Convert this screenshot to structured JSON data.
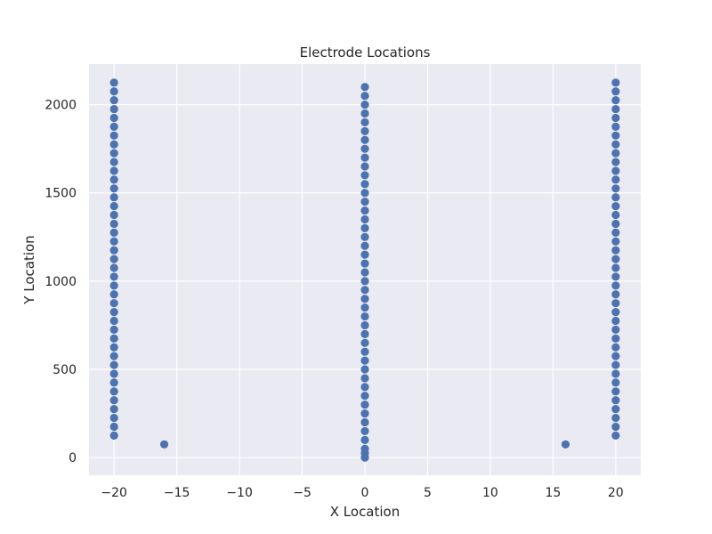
{
  "chart_data": {
    "type": "scatter",
    "title": "Electrode Locations",
    "xlabel": "X Location",
    "ylabel": "Y Location",
    "xlim": [
      -22,
      22
    ],
    "ylim": [
      -100,
      2230
    ],
    "xticks": [
      -20,
      -15,
      -10,
      -5,
      0,
      5,
      10,
      15,
      20
    ],
    "yticks": [
      0,
      500,
      1000,
      1500,
      2000
    ],
    "xtick_labels": [
      "−20",
      "−15",
      "−10",
      "−5",
      "0",
      "5",
      "10",
      "15",
      "20"
    ],
    "ytick_labels": [
      "0",
      "500",
      "1000",
      "1500",
      "2000"
    ],
    "grid": true,
    "legend": "none",
    "colors": {
      "marker": "#4c72b0",
      "background": "#eaeaf2",
      "grid": "#ffffff"
    },
    "points": [
      [
        -20,
        125
      ],
      [
        -20,
        175
      ],
      [
        -20,
        225
      ],
      [
        -20,
        275
      ],
      [
        -20,
        325
      ],
      [
        -20,
        375
      ],
      [
        -20,
        425
      ],
      [
        -20,
        475
      ],
      [
        -20,
        525
      ],
      [
        -20,
        575
      ],
      [
        -20,
        625
      ],
      [
        -20,
        675
      ],
      [
        -20,
        725
      ],
      [
        -20,
        775
      ],
      [
        -20,
        825
      ],
      [
        -20,
        875
      ],
      [
        -20,
        925
      ],
      [
        -20,
        975
      ],
      [
        -20,
        1025
      ],
      [
        -20,
        1075
      ],
      [
        -20,
        1125
      ],
      [
        -20,
        1175
      ],
      [
        -20,
        1225
      ],
      [
        -20,
        1275
      ],
      [
        -20,
        1325
      ],
      [
        -20,
        1375
      ],
      [
        -20,
        1425
      ],
      [
        -20,
        1475
      ],
      [
        -20,
        1525
      ],
      [
        -20,
        1575
      ],
      [
        -20,
        1625
      ],
      [
        -20,
        1675
      ],
      [
        -20,
        1725
      ],
      [
        -20,
        1775
      ],
      [
        -20,
        1825
      ],
      [
        -20,
        1875
      ],
      [
        -20,
        1925
      ],
      [
        -20,
        1975
      ],
      [
        -20,
        2025
      ],
      [
        -20,
        2075
      ],
      [
        -20,
        2125
      ],
      [
        -16,
        75
      ],
      [
        0,
        0
      ],
      [
        0,
        25
      ],
      [
        0,
        50
      ],
      [
        0,
        100
      ],
      [
        0,
        150
      ],
      [
        0,
        200
      ],
      [
        0,
        250
      ],
      [
        0,
        300
      ],
      [
        0,
        350
      ],
      [
        0,
        400
      ],
      [
        0,
        450
      ],
      [
        0,
        500
      ],
      [
        0,
        550
      ],
      [
        0,
        600
      ],
      [
        0,
        650
      ],
      [
        0,
        700
      ],
      [
        0,
        750
      ],
      [
        0,
        800
      ],
      [
        0,
        850
      ],
      [
        0,
        900
      ],
      [
        0,
        950
      ],
      [
        0,
        1000
      ],
      [
        0,
        1050
      ],
      [
        0,
        1100
      ],
      [
        0,
        1150
      ],
      [
        0,
        1200
      ],
      [
        0,
        1250
      ],
      [
        0,
        1300
      ],
      [
        0,
        1350
      ],
      [
        0,
        1400
      ],
      [
        0,
        1450
      ],
      [
        0,
        1500
      ],
      [
        0,
        1550
      ],
      [
        0,
        1600
      ],
      [
        0,
        1650
      ],
      [
        0,
        1700
      ],
      [
        0,
        1750
      ],
      [
        0,
        1800
      ],
      [
        0,
        1850
      ],
      [
        0,
        1900
      ],
      [
        0,
        1950
      ],
      [
        0,
        2000
      ],
      [
        0,
        2050
      ],
      [
        0,
        2100
      ],
      [
        16,
        75
      ],
      [
        20,
        125
      ],
      [
        20,
        175
      ],
      [
        20,
        225
      ],
      [
        20,
        275
      ],
      [
        20,
        325
      ],
      [
        20,
        375
      ],
      [
        20,
        425
      ],
      [
        20,
        475
      ],
      [
        20,
        525
      ],
      [
        20,
        575
      ],
      [
        20,
        625
      ],
      [
        20,
        675
      ],
      [
        20,
        725
      ],
      [
        20,
        775
      ],
      [
        20,
        825
      ],
      [
        20,
        875
      ],
      [
        20,
        925
      ],
      [
        20,
        975
      ],
      [
        20,
        1025
      ],
      [
        20,
        1075
      ],
      [
        20,
        1125
      ],
      [
        20,
        1175
      ],
      [
        20,
        1225
      ],
      [
        20,
        1275
      ],
      [
        20,
        1325
      ],
      [
        20,
        1375
      ],
      [
        20,
        1425
      ],
      [
        20,
        1475
      ],
      [
        20,
        1525
      ],
      [
        20,
        1575
      ],
      [
        20,
        1625
      ],
      [
        20,
        1675
      ],
      [
        20,
        1725
      ],
      [
        20,
        1775
      ],
      [
        20,
        1825
      ],
      [
        20,
        1875
      ],
      [
        20,
        1925
      ],
      [
        20,
        1975
      ],
      [
        20,
        2025
      ],
      [
        20,
        2075
      ],
      [
        20,
        2125
      ]
    ]
  }
}
